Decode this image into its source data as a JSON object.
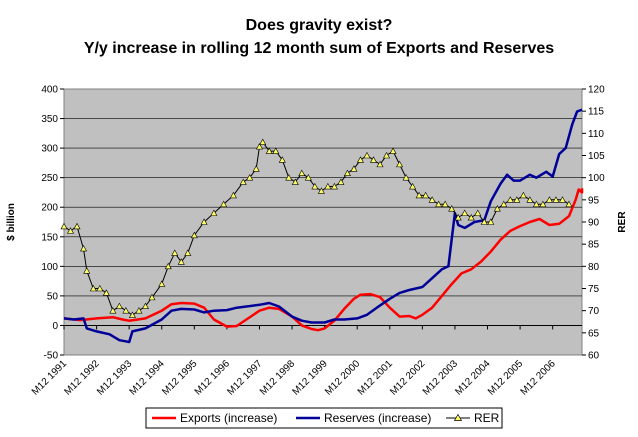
{
  "chart_data": {
    "type": "line",
    "title": "Does gravity exist?",
    "subtitle": "Y/y increase in rolling 12 month sum of Exports and Reserves",
    "ylabel_left": "$ billion",
    "ylabel_right": "RER",
    "ylim_left": [
      -50,
      400
    ],
    "ylim_right": [
      60,
      120
    ],
    "yticks_left": [
      "-50",
      "0",
      "50",
      "100",
      "150",
      "200",
      "250",
      "300",
      "350",
      "400"
    ],
    "yticks_right": [
      "60",
      "65",
      "70",
      "75",
      "80",
      "85",
      "90",
      "95",
      "100",
      "105",
      "110",
      "115",
      "120"
    ],
    "xlim": [
      1991,
      2006.9
    ],
    "xticks": [
      {
        "x": 1991,
        "label": "M12 1991"
      },
      {
        "x": 1992,
        "label": "M12 1992"
      },
      {
        "x": 1993,
        "label": "M12 1993"
      },
      {
        "x": 1994,
        "label": "M12 1994"
      },
      {
        "x": 1995,
        "label": "M12 1995"
      },
      {
        "x": 1996,
        "label": "M12 1996"
      },
      {
        "x": 1997,
        "label": "M12 1997"
      },
      {
        "x": 1998,
        "label": "M12 1998"
      },
      {
        "x": 1999,
        "label": "M12 1999"
      },
      {
        "x": 2000,
        "label": "M12 2000"
      },
      {
        "x": 2001,
        "label": "M12 2001"
      },
      {
        "x": 2002,
        "label": "M12 2002"
      },
      {
        "x": 2003,
        "label": "M12 2003"
      },
      {
        "x": 2004,
        "label": "M12 2004"
      },
      {
        "x": 2005,
        "label": "M12 2005"
      },
      {
        "x": 2006,
        "label": "M12 2006"
      }
    ],
    "plot_background": "#c0c0c0",
    "grid": true,
    "legend_position": "bottom",
    "series": [
      {
        "name": "Exports (increase)",
        "axis": "left",
        "color": "#ff0000",
        "marker": "none",
        "points": [
          [
            1991.0,
            12
          ],
          [
            1991.5,
            9
          ],
          [
            1992.0,
            12
          ],
          [
            1992.5,
            14
          ],
          [
            1992.8,
            10
          ],
          [
            1993.0,
            8
          ],
          [
            1993.5,
            12
          ],
          [
            1994.0,
            25
          ],
          [
            1994.3,
            36
          ],
          [
            1994.6,
            38
          ],
          [
            1995.0,
            37
          ],
          [
            1995.3,
            30
          ],
          [
            1995.6,
            10
          ],
          [
            1996.0,
            -2
          ],
          [
            1996.3,
            -1
          ],
          [
            1996.6,
            10
          ],
          [
            1997.0,
            25
          ],
          [
            1997.3,
            30
          ],
          [
            1997.6,
            28
          ],
          [
            1998.0,
            15
          ],
          [
            1998.3,
            0
          ],
          [
            1998.6,
            -6
          ],
          [
            1998.8,
            -8
          ],
          [
            1999.0,
            -5
          ],
          [
            1999.3,
            8
          ],
          [
            1999.6,
            28
          ],
          [
            1999.9,
            45
          ],
          [
            2000.1,
            52
          ],
          [
            2000.4,
            53
          ],
          [
            2000.7,
            48
          ],
          [
            2001.0,
            30
          ],
          [
            2001.3,
            15
          ],
          [
            2001.6,
            16
          ],
          [
            2001.8,
            12
          ],
          [
            2002.0,
            18
          ],
          [
            2002.3,
            30
          ],
          [
            2002.6,
            50
          ],
          [
            2002.9,
            70
          ],
          [
            2003.2,
            88
          ],
          [
            2003.5,
            95
          ],
          [
            2003.8,
            108
          ],
          [
            2004.1,
            125
          ],
          [
            2004.4,
            145
          ],
          [
            2004.7,
            160
          ],
          [
            2005.0,
            168
          ],
          [
            2005.3,
            175
          ],
          [
            2005.6,
            180
          ],
          [
            2005.9,
            170
          ],
          [
            2006.2,
            172
          ],
          [
            2006.5,
            185
          ],
          [
            2006.7,
            212
          ],
          [
            2006.8,
            230
          ],
          [
            2006.9,
            225
          ],
          [
            2007.0,
            232
          ]
        ]
      },
      {
        "name": "Reserves (increase)",
        "axis": "left",
        "color": "#000099",
        "marker": "none",
        "points": [
          [
            1991.0,
            12
          ],
          [
            1991.3,
            10
          ],
          [
            1991.6,
            12
          ],
          [
            1991.7,
            -5
          ],
          [
            1992.0,
            -10
          ],
          [
            1992.4,
            -15
          ],
          [
            1992.7,
            -25
          ],
          [
            1993.0,
            -28
          ],
          [
            1993.1,
            -10
          ],
          [
            1993.5,
            -5
          ],
          [
            1994.0,
            10
          ],
          [
            1994.3,
            25
          ],
          [
            1994.6,
            28
          ],
          [
            1995.0,
            27
          ],
          [
            1995.3,
            22
          ],
          [
            1995.6,
            25
          ],
          [
            1996.0,
            26
          ],
          [
            1996.3,
            30
          ],
          [
            1996.6,
            32
          ],
          [
            1997.0,
            35
          ],
          [
            1997.3,
            38
          ],
          [
            1997.6,
            32
          ],
          [
            1998.0,
            15
          ],
          [
            1998.3,
            8
          ],
          [
            1998.6,
            5
          ],
          [
            1999.0,
            5
          ],
          [
            1999.3,
            10
          ],
          [
            1999.6,
            10
          ],
          [
            2000.0,
            12
          ],
          [
            2000.3,
            18
          ],
          [
            2000.6,
            30
          ],
          [
            2001.0,
            45
          ],
          [
            2001.3,
            55
          ],
          [
            2001.6,
            60
          ],
          [
            2002.0,
            65
          ],
          [
            2002.3,
            80
          ],
          [
            2002.6,
            95
          ],
          [
            2002.8,
            100
          ],
          [
            2003.0,
            190
          ],
          [
            2003.1,
            170
          ],
          [
            2003.3,
            165
          ],
          [
            2003.6,
            175
          ],
          [
            2003.9,
            178
          ],
          [
            2004.1,
            210
          ],
          [
            2004.4,
            240
          ],
          [
            2004.6,
            255
          ],
          [
            2004.8,
            245
          ],
          [
            2005.0,
            245
          ],
          [
            2005.3,
            255
          ],
          [
            2005.5,
            250
          ],
          [
            2005.8,
            260
          ],
          [
            2006.0,
            252
          ],
          [
            2006.2,
            290
          ],
          [
            2006.4,
            300
          ],
          [
            2006.6,
            340
          ],
          [
            2006.75,
            362
          ],
          [
            2006.9,
            365
          ]
        ]
      },
      {
        "name": "RER",
        "axis": "right",
        "color": "#000000",
        "marker": "triangle",
        "marker_color": "#ffff66",
        "points": [
          [
            1991.0,
            89
          ],
          [
            1991.2,
            88
          ],
          [
            1991.4,
            89
          ],
          [
            1991.6,
            84
          ],
          [
            1991.7,
            79
          ],
          [
            1991.9,
            75
          ],
          [
            1992.1,
            75
          ],
          [
            1992.3,
            74
          ],
          [
            1992.5,
            70
          ],
          [
            1992.7,
            71
          ],
          [
            1992.9,
            70
          ],
          [
            1993.1,
            69
          ],
          [
            1993.3,
            70
          ],
          [
            1993.5,
            71
          ],
          [
            1993.7,
            73
          ],
          [
            1994.0,
            76
          ],
          [
            1994.2,
            80
          ],
          [
            1994.4,
            83
          ],
          [
            1994.6,
            81
          ],
          [
            1994.8,
            83
          ],
          [
            1995.0,
            87
          ],
          [
            1995.3,
            90
          ],
          [
            1995.6,
            92
          ],
          [
            1995.9,
            94
          ],
          [
            1996.2,
            96
          ],
          [
            1996.5,
            99
          ],
          [
            1996.7,
            100
          ],
          [
            1996.9,
            102
          ],
          [
            1997.0,
            107
          ],
          [
            1997.1,
            108
          ],
          [
            1997.3,
            106
          ],
          [
            1997.5,
            106
          ],
          [
            1997.7,
            104
          ],
          [
            1997.9,
            100
          ],
          [
            1998.1,
            99
          ],
          [
            1998.3,
            101
          ],
          [
            1998.5,
            100
          ],
          [
            1998.7,
            98
          ],
          [
            1998.9,
            97
          ],
          [
            1999.1,
            98
          ],
          [
            1999.3,
            98
          ],
          [
            1999.5,
            99
          ],
          [
            1999.7,
            101
          ],
          [
            1999.9,
            102
          ],
          [
            2000.1,
            104
          ],
          [
            2000.3,
            105
          ],
          [
            2000.5,
            104
          ],
          [
            2000.7,
            103
          ],
          [
            2000.9,
            105
          ],
          [
            2001.1,
            106
          ],
          [
            2001.3,
            103
          ],
          [
            2001.5,
            100
          ],
          [
            2001.7,
            98
          ],
          [
            2001.9,
            96
          ],
          [
            2002.1,
            96
          ],
          [
            2002.3,
            95
          ],
          [
            2002.5,
            94
          ],
          [
            2002.7,
            94
          ],
          [
            2002.9,
            93
          ],
          [
            2003.1,
            91
          ],
          [
            2003.3,
            92
          ],
          [
            2003.5,
            91
          ],
          [
            2003.7,
            92
          ],
          [
            2003.9,
            90
          ],
          [
            2004.1,
            90
          ],
          [
            2004.3,
            93
          ],
          [
            2004.5,
            94
          ],
          [
            2004.7,
            95
          ],
          [
            2004.9,
            95
          ],
          [
            2005.1,
            96
          ],
          [
            2005.3,
            95
          ],
          [
            2005.5,
            94
          ],
          [
            2005.7,
            94
          ],
          [
            2005.9,
            95
          ],
          [
            2006.1,
            95
          ],
          [
            2006.3,
            95
          ],
          [
            2006.5,
            94
          ]
        ]
      }
    ]
  }
}
